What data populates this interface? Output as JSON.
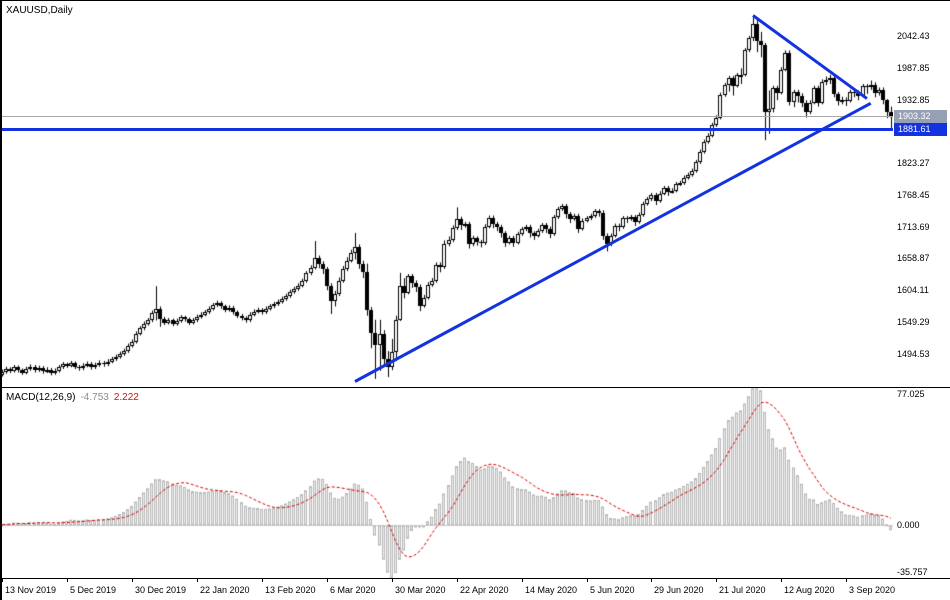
{
  "chart_data": {
    "type": "candlestick",
    "title": "XAUUSD,Daily",
    "symbol": "XAUUSD",
    "timeframe": "Daily",
    "price_axis": {
      "side": "right",
      "labels": [
        "2042.43",
        "1987.85",
        "1932.85",
        "1823.27",
        "1768.45",
        "1713.69",
        "1658.87",
        "1604.11",
        "1549.29",
        "1494.53"
      ],
      "view_max": 2105,
      "view_min": 1437
    },
    "date_axis": {
      "labels": [
        {
          "text": "13 Nov 2019",
          "bar": 0
        },
        {
          "text": "5 Dec 2019",
          "bar": 16
        },
        {
          "text": "30 Dec 2019",
          "bar": 32
        },
        {
          "text": "22 Jan 2020",
          "bar": 48
        },
        {
          "text": "13 Feb 2020",
          "bar": 64
        },
        {
          "text": "6 Mar 2020",
          "bar": 80
        },
        {
          "text": "30 Mar 2020",
          "bar": 96
        },
        {
          "text": "22 Apr 2020",
          "bar": 112
        },
        {
          "text": "14 May 2020",
          "bar": 128
        },
        {
          "text": "5 Jun 2020",
          "bar": 144
        },
        {
          "text": "29 Jun 2020",
          "bar": 160
        },
        {
          "text": "21 Jul 2020",
          "bar": 176
        },
        {
          "text": "12 Aug 2020",
          "bar": 192
        },
        {
          "text": "3 Sep 2020",
          "bar": 208
        }
      ]
    },
    "current_price": {
      "text": "1903.32",
      "value": 1903.32
    },
    "support_line": {
      "text": "1881.61",
      "value": 1881.61
    },
    "trendlines": [
      {
        "name": "descending-trendline",
        "from_bar": 185,
        "from_price": 2079,
        "to_bar": 213,
        "to_price": 1936
      },
      {
        "name": "ascending-trendline",
        "from_bar": 87,
        "from_price": 1446,
        "to_bar": 214,
        "to_price": 1926
      }
    ],
    "indicator": {
      "name": "MACD",
      "label": "MACD(12,26,9)",
      "params": {
        "fast": 12,
        "slow": 26,
        "signal": 9
      },
      "main_value": "-4.753",
      "signal_value": "2.222",
      "axis_labels": [
        {
          "text": "77.025",
          "value": 77.025
        },
        {
          "text": "0.000",
          "value": 0
        },
        {
          "text": "-35.757",
          "value": -35.757
        }
      ]
    },
    "colors": {
      "background": "#ffffff",
      "candle": "#000000",
      "bull_fill": "#ffffff",
      "bear_fill": "#000000",
      "blue": "#1333e0",
      "current_price_line": "#a8a8a8",
      "current_price_badge": "#95a0b5",
      "histogram_fill": "#ececec",
      "histogram_stroke": "#b8b8b8",
      "signal_line": "#d40000",
      "zero_line": "#c8c8c8",
      "macd_main_text": "#8c8c8c",
      "macd_signal_text": "#cc1111",
      "text": "#000000"
    },
    "candles": [
      [
        1458,
        1467,
        1455,
        1463
      ],
      [
        1463,
        1472,
        1460,
        1468
      ],
      [
        1468,
        1471,
        1461,
        1465
      ],
      [
        1465,
        1475,
        1462,
        1471
      ],
      [
        1471,
        1474,
        1462,
        1466
      ],
      [
        1466,
        1469,
        1458,
        1462
      ],
      [
        1462,
        1472,
        1459,
        1468
      ],
      [
        1468,
        1476,
        1465,
        1472
      ],
      [
        1472,
        1475,
        1462,
        1466
      ],
      [
        1466,
        1474,
        1463,
        1470
      ],
      [
        1470,
        1473,
        1460,
        1464
      ],
      [
        1464,
        1471,
        1461,
        1467
      ],
      [
        1467,
        1470,
        1457,
        1461
      ],
      [
        1461,
        1469,
        1458,
        1465
      ],
      [
        1465,
        1475,
        1462,
        1471
      ],
      [
        1471,
        1480,
        1468,
        1476
      ],
      [
        1476,
        1479,
        1470,
        1474
      ],
      [
        1474,
        1482,
        1471,
        1478
      ],
      [
        1478,
        1481,
        1468,
        1472
      ],
      [
        1472,
        1475,
        1465,
        1469
      ],
      [
        1469,
        1478,
        1466,
        1474
      ],
      [
        1474,
        1481,
        1471,
        1477
      ],
      [
        1477,
        1480,
        1467,
        1471
      ],
      [
        1471,
        1479,
        1468,
        1475
      ],
      [
        1475,
        1483,
        1472,
        1479
      ],
      [
        1479,
        1482,
        1472,
        1476
      ],
      [
        1476,
        1485,
        1473,
        1481
      ],
      [
        1481,
        1489,
        1478,
        1485
      ],
      [
        1485,
        1493,
        1482,
        1489
      ],
      [
        1489,
        1498,
        1486,
        1494
      ],
      [
        1494,
        1503,
        1491,
        1499
      ],
      [
        1499,
        1512,
        1496,
        1508
      ],
      [
        1508,
        1519,
        1505,
        1515
      ],
      [
        1515,
        1533,
        1512,
        1529
      ],
      [
        1529,
        1542,
        1526,
        1538
      ],
      [
        1538,
        1550,
        1535,
        1546
      ],
      [
        1546,
        1556,
        1543,
        1552
      ],
      [
        1552,
        1569,
        1549,
        1565
      ],
      [
        1565,
        1611,
        1552,
        1571
      ],
      [
        1571,
        1576,
        1541,
        1554
      ],
      [
        1554,
        1558,
        1544,
        1548
      ],
      [
        1548,
        1556,
        1545,
        1552
      ],
      [
        1552,
        1555,
        1542,
        1546
      ],
      [
        1546,
        1555,
        1543,
        1551
      ],
      [
        1551,
        1561,
        1548,
        1557
      ],
      [
        1557,
        1560,
        1550,
        1554
      ],
      [
        1554,
        1557,
        1544,
        1548
      ],
      [
        1548,
        1556,
        1545,
        1552
      ],
      [
        1552,
        1562,
        1549,
        1558
      ],
      [
        1558,
        1566,
        1555,
        1562
      ],
      [
        1562,
        1570,
        1559,
        1566
      ],
      [
        1566,
        1576,
        1563,
        1572
      ],
      [
        1572,
        1582,
        1569,
        1578
      ],
      [
        1578,
        1586,
        1575,
        1582
      ],
      [
        1582,
        1585,
        1572,
        1576
      ],
      [
        1576,
        1579,
        1566,
        1570
      ],
      [
        1570,
        1578,
        1567,
        1574
      ],
      [
        1574,
        1577,
        1562,
        1566
      ],
      [
        1566,
        1569,
        1556,
        1560
      ],
      [
        1560,
        1563,
        1552,
        1556
      ],
      [
        1556,
        1559,
        1548,
        1552
      ],
      [
        1552,
        1566,
        1549,
        1562
      ],
      [
        1562,
        1571,
        1559,
        1567
      ],
      [
        1567,
        1574,
        1564,
        1570
      ],
      [
        1570,
        1573,
        1562,
        1566
      ],
      [
        1566,
        1576,
        1563,
        1572
      ],
      [
        1572,
        1580,
        1569,
        1576
      ],
      [
        1576,
        1584,
        1573,
        1580
      ],
      [
        1580,
        1588,
        1577,
        1584
      ],
      [
        1584,
        1593,
        1581,
        1589
      ],
      [
        1589,
        1598,
        1586,
        1594
      ],
      [
        1594,
        1605,
        1591,
        1601
      ],
      [
        1601,
        1610,
        1598,
        1606
      ],
      [
        1606,
        1616,
        1603,
        1612
      ],
      [
        1612,
        1624,
        1609,
        1620
      ],
      [
        1620,
        1637,
        1617,
        1633
      ],
      [
        1633,
        1647,
        1630,
        1643
      ],
      [
        1643,
        1689,
        1640,
        1660
      ],
      [
        1660,
        1664,
        1642,
        1650
      ],
      [
        1650,
        1654,
        1632,
        1640
      ],
      [
        1640,
        1644,
        1604,
        1612
      ],
      [
        1612,
        1616,
        1563,
        1585
      ],
      [
        1585,
        1603,
        1576,
        1597
      ],
      [
        1597,
        1626,
        1594,
        1620
      ],
      [
        1620,
        1646,
        1617,
        1640
      ],
      [
        1640,
        1661,
        1637,
        1655
      ],
      [
        1655,
        1674,
        1652,
        1668
      ],
      [
        1668,
        1703,
        1657,
        1679
      ],
      [
        1679,
        1683,
        1641,
        1650
      ],
      [
        1650,
        1655,
        1625,
        1635
      ],
      [
        1635,
        1650,
        1560,
        1570
      ],
      [
        1570,
        1575,
        1504,
        1530
      ],
      [
        1530,
        1553,
        1451,
        1509
      ],
      [
        1509,
        1553,
        1465,
        1528
      ],
      [
        1528,
        1535,
        1473,
        1486
      ],
      [
        1486,
        1499,
        1454,
        1471
      ],
      [
        1471,
        1520,
        1466,
        1498
      ],
      [
        1498,
        1560,
        1482,
        1553
      ],
      [
        1553,
        1634,
        1551,
        1611
      ],
      [
        1611,
        1625,
        1590,
        1600
      ],
      [
        1600,
        1632,
        1597,
        1628
      ],
      [
        1628,
        1632,
        1608,
        1617
      ],
      [
        1617,
        1621,
        1601,
        1610
      ],
      [
        1610,
        1614,
        1568,
        1577
      ],
      [
        1577,
        1596,
        1574,
        1591
      ],
      [
        1591,
        1618,
        1588,
        1613
      ],
      [
        1613,
        1625,
        1610,
        1620
      ],
      [
        1620,
        1652,
        1617,
        1648
      ],
      [
        1648,
        1652,
        1635,
        1644
      ],
      [
        1644,
        1690,
        1641,
        1684
      ],
      [
        1684,
        1697,
        1680,
        1690
      ],
      [
        1690,
        1716,
        1687,
        1711
      ],
      [
        1711,
        1747,
        1708,
        1727
      ],
      [
        1727,
        1731,
        1708,
        1717
      ],
      [
        1717,
        1722,
        1712,
        1718
      ],
      [
        1718,
        1722,
        1676,
        1683
      ],
      [
        1683,
        1698,
        1680,
        1694
      ],
      [
        1694,
        1697,
        1681,
        1687
      ],
      [
        1687,
        1691,
        1678,
        1685
      ],
      [
        1685,
        1718,
        1682,
        1714
      ],
      [
        1714,
        1733,
        1711,
        1729
      ],
      [
        1729,
        1733,
        1711,
        1718
      ],
      [
        1718,
        1722,
        1706,
        1713
      ],
      [
        1713,
        1717,
        1695,
        1702
      ],
      [
        1702,
        1706,
        1679,
        1686
      ],
      [
        1686,
        1698,
        1683,
        1694
      ],
      [
        1694,
        1698,
        1679,
        1686
      ],
      [
        1686,
        1705,
        1683,
        1701
      ],
      [
        1701,
        1713,
        1698,
        1709
      ],
      [
        1709,
        1717,
        1706,
        1713
      ],
      [
        1713,
        1717,
        1695,
        1702
      ],
      [
        1702,
        1706,
        1691,
        1698
      ],
      [
        1698,
        1710,
        1695,
        1706
      ],
      [
        1706,
        1720,
        1703,
        1716
      ],
      [
        1716,
        1720,
        1703,
        1710
      ],
      [
        1710,
        1714,
        1694,
        1701
      ],
      [
        1701,
        1734,
        1698,
        1730
      ],
      [
        1730,
        1748,
        1727,
        1744
      ],
      [
        1744,
        1753,
        1741,
        1749
      ],
      [
        1749,
        1753,
        1728,
        1735
      ],
      [
        1735,
        1739,
        1720,
        1727
      ],
      [
        1727,
        1736,
        1724,
        1732
      ],
      [
        1732,
        1736,
        1703,
        1710
      ],
      [
        1710,
        1728,
        1707,
        1724
      ],
      [
        1724,
        1732,
        1721,
        1728
      ],
      [
        1728,
        1736,
        1725,
        1732
      ],
      [
        1732,
        1744,
        1729,
        1740
      ],
      [
        1740,
        1744,
        1731,
        1738
      ],
      [
        1738,
        1742,
        1691,
        1698
      ],
      [
        1698,
        1702,
        1671,
        1683
      ],
      [
        1683,
        1702,
        1680,
        1698
      ],
      [
        1698,
        1719,
        1695,
        1715
      ],
      [
        1715,
        1719,
        1706,
        1713
      ],
      [
        1713,
        1732,
        1710,
        1728
      ],
      [
        1728,
        1732,
        1720,
        1727
      ],
      [
        1727,
        1734,
        1724,
        1730
      ],
      [
        1730,
        1734,
        1715,
        1722
      ],
      [
        1722,
        1738,
        1719,
        1734
      ],
      [
        1734,
        1757,
        1731,
        1753
      ],
      [
        1753,
        1765,
        1750,
        1761
      ],
      [
        1761,
        1772,
        1758,
        1768
      ],
      [
        1768,
        1772,
        1751,
        1758
      ],
      [
        1758,
        1775,
        1755,
        1771
      ],
      [
        1771,
        1784,
        1768,
        1780
      ],
      [
        1780,
        1784,
        1767,
        1774
      ],
      [
        1774,
        1780,
        1771,
        1776
      ],
      [
        1776,
        1791,
        1773,
        1787
      ],
      [
        1787,
        1793,
        1784,
        1789
      ],
      [
        1789,
        1802,
        1786,
        1798
      ],
      [
        1798,
        1807,
        1795,
        1803
      ],
      [
        1803,
        1814,
        1800,
        1810
      ],
      [
        1810,
        1829,
        1807,
        1825
      ],
      [
        1825,
        1847,
        1822,
        1843
      ],
      [
        1843,
        1864,
        1840,
        1860
      ],
      [
        1860,
        1875,
        1857,
        1871
      ],
      [
        1871,
        1893,
        1868,
        1889
      ],
      [
        1889,
        1906,
        1886,
        1902
      ],
      [
        1902,
        1945,
        1899,
        1941
      ],
      [
        1941,
        1962,
        1938,
        1958
      ],
      [
        1958,
        1974,
        1947,
        1970
      ],
      [
        1970,
        1974,
        1940,
        1957
      ],
      [
        1957,
        1979,
        1954,
        1975
      ],
      [
        1975,
        1987,
        1960,
        1976
      ],
      [
        1976,
        2022,
        1973,
        2018
      ],
      [
        2018,
        2043,
        2015,
        2039
      ],
      [
        2039,
        2075,
        2034,
        2063
      ],
      [
        2063,
        2072,
        2015,
        2035
      ],
      [
        2035,
        2050,
        2006,
        2028
      ],
      [
        2028,
        2031,
        1863,
        1911
      ],
      [
        1911,
        1949,
        1874,
        1916
      ],
      [
        1916,
        1957,
        1911,
        1953
      ],
      [
        1953,
        1957,
        1932,
        1945
      ],
      [
        1945,
        1989,
        1942,
        1985
      ],
      [
        1985,
        2018,
        1982,
        2014
      ],
      [
        2014,
        2018,
        1923,
        1929
      ],
      [
        1929,
        1950,
        1920,
        1946
      ],
      [
        1946,
        1950,
        1928,
        1940
      ],
      [
        1940,
        1944,
        1920,
        1928
      ],
      [
        1928,
        1932,
        1902,
        1911
      ],
      [
        1911,
        1932,
        1908,
        1928
      ],
      [
        1928,
        1957,
        1925,
        1953
      ],
      [
        1953,
        1957,
        1921,
        1928
      ],
      [
        1928,
        1968,
        1925,
        1964
      ],
      [
        1964,
        1973,
        1958,
        1967
      ],
      [
        1967,
        1976,
        1960,
        1970
      ],
      [
        1970,
        1974,
        1937,
        1942
      ],
      [
        1942,
        1946,
        1923,
        1930
      ],
      [
        1930,
        1938,
        1925,
        1933
      ],
      [
        1933,
        1937,
        1922,
        1931
      ],
      [
        1931,
        1950,
        1928,
        1946
      ],
      [
        1946,
        1950,
        1937,
        1945
      ],
      [
        1945,
        1949,
        1932,
        1940
      ],
      [
        1940,
        1960,
        1937,
        1956
      ],
      [
        1956,
        1960,
        1943,
        1954
      ],
      [
        1954,
        1966,
        1950,
        1959
      ],
      [
        1959,
        1963,
        1937,
        1944
      ],
      [
        1944,
        1954,
        1940,
        1950
      ],
      [
        1950,
        1954,
        1925,
        1932
      ],
      [
        1932,
        1934,
        1901,
        1912
      ],
      [
        1912,
        1921,
        1882,
        1903
      ]
    ]
  }
}
